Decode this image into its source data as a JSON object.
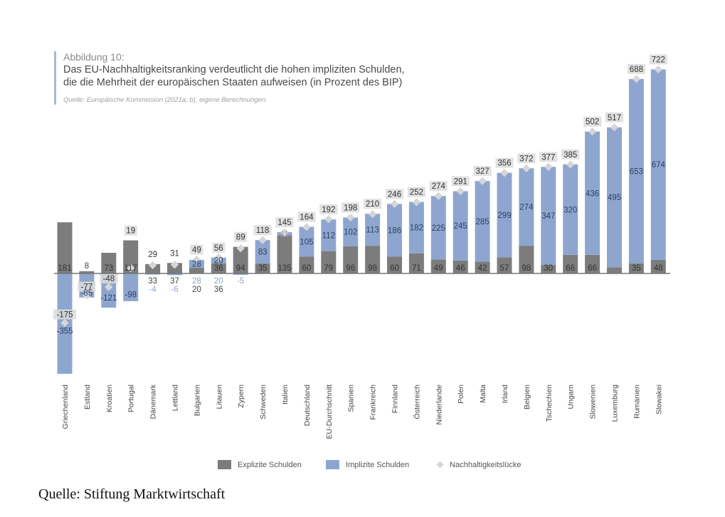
{
  "header": {
    "figure_label": "Abbildung 10:",
    "title_line1": "Das EU-Nachhaltigkeitsranking verdeutlicht die hohen impliziten Schulden,",
    "title_line2": "die die Mehrheit der europäischen Staaten aufweisen (in Prozent des BIP)",
    "source": "Quelle: Europäische Kommission (2021a, b), eigene Berechnungen."
  },
  "colors": {
    "explicit": "#7c7c7c",
    "implicit": "#8ea6cf",
    "gap_marker": "#d6d6d6",
    "axis": "#777777"
  },
  "legend": {
    "explicit": "Explizite Schulden",
    "implicit": "Implizite Schulden",
    "gap": "Nachhaltigkeitslücke"
  },
  "footer": "Quelle: Stiftung Marktwirtschaft",
  "chart_data": {
    "type": "bar",
    "stacked": true,
    "title": "Das EU-Nachhaltigkeitsranking verdeutlicht die hohen impliziten Schulden, die die Mehrheit der europäischen Staaten aufweisen (in Prozent des BIP)",
    "xlabel": "",
    "ylabel": "in Prozent des BIP",
    "ylim": [
      -355,
      722
    ],
    "grid": false,
    "legend_position": "bottom",
    "categories": [
      "Griechenland",
      "Estland",
      "Kroatien",
      "Portugal",
      "Dänemark",
      "Lettland",
      "Bulgarien",
      "Litauen",
      "Zypern",
      "Schweden",
      "Italien",
      "Deutschland",
      "EU-Durchschnitt",
      "Spanien",
      "Frankreich",
      "Finnland",
      "Österreich",
      "Niederlande",
      "Polen",
      "Malta",
      "Irland",
      "Belgien",
      "Tschechien",
      "Ungarn",
      "Slowenien",
      "Luxemburg",
      "Rumänien",
      "Slowakei"
    ],
    "series": [
      {
        "name": "Explizite Schulden",
        "values": [
          181,
          8,
          73,
          117,
          33,
          37,
          20,
          36,
          94,
          35,
          135,
          60,
          79,
          96,
          98,
          60,
          71,
          49,
          46,
          42,
          57,
          98,
          30,
          66,
          66,
          22,
          35,
          48
        ]
      },
      {
        "name": "Implizite Schulden",
        "values": [
          -355,
          -85,
          -121,
          -98,
          -4,
          -6,
          28,
          20,
          -5,
          83,
          11,
          105,
          112,
          102,
          113,
          186,
          182,
          225,
          245,
          285,
          299,
          274,
          347,
          320,
          436,
          495,
          653,
          674
        ]
      },
      {
        "name": "Nachhaltigkeitslücke",
        "type": "marker",
        "values": [
          -175,
          -77,
          -48,
          19,
          29,
          31,
          49,
          56,
          89,
          118,
          145,
          164,
          192,
          198,
          210,
          246,
          252,
          274,
          291,
          327,
          356,
          372,
          377,
          385,
          502,
          517,
          688,
          722
        ]
      }
    ]
  }
}
